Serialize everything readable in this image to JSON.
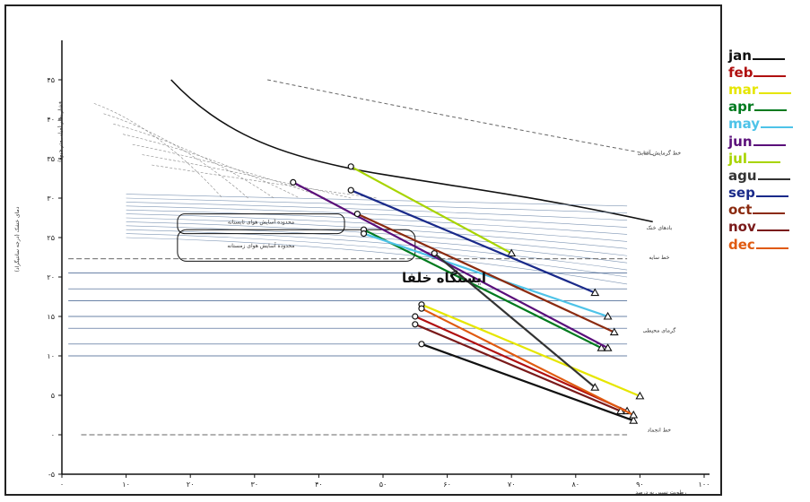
{
  "chart_data": {
    "type": "line",
    "title": "",
    "station_label": "ایستگاه خلفا",
    "x_ticks": [
      "۰",
      "۱۰",
      "۲۰",
      "۳۰",
      "۴۰",
      "۵۰",
      "۶۰",
      "۷۰",
      "۸۰",
      "۹۰",
      "۱۰۰"
    ],
    "y_ticks": [
      "۴۵",
      "۴۰",
      "۳۵",
      "۳۰",
      "۲۵",
      "۲۰",
      "۱۵",
      "۱۰",
      "۵",
      "۰",
      "-۵"
    ],
    "xlabel": "رطوبت نسبی به درصد",
    "ylabel": "دمای خشک (درجه سانتیگراد)",
    "ylabel_2": "فشار بخار (میلی متر جیوه)",
    "comfort_summer": "محدوده آسایش هوای تابستانه",
    "comfort_winter": "محدوده آسایش هوای زمستانه",
    "side_labels": [
      "خط گرمایش آفتابی",
      "بادهای خنک",
      "خط سایه",
      "گرمای محیطی",
      "خط انجماد"
    ],
    "xlim": [
      0,
      100
    ],
    "ylim": [
      -5,
      50
    ],
    "legend_position": "right",
    "series": [
      {
        "name": "jan",
        "color": "#111111",
        "points": [
          [
            56,
            11.5
          ],
          [
            89,
            1.8
          ]
        ]
      },
      {
        "name": "feb",
        "color": "#b01010",
        "points": [
          [
            55,
            15
          ],
          [
            88,
            3
          ]
        ]
      },
      {
        "name": "mar",
        "color": "#e6e600",
        "points": [
          [
            56,
            16.5
          ],
          [
            90,
            4.9
          ]
        ]
      },
      {
        "name": "apr",
        "color": "#007a1e",
        "points": [
          [
            47,
            26
          ],
          [
            84,
            11
          ]
        ]
      },
      {
        "name": "may",
        "color": "#4ec3e8",
        "points": [
          [
            47,
            25.5
          ],
          [
            85,
            15
          ]
        ]
      },
      {
        "name": "jun",
        "color": "#5a0f7a",
        "points": [
          [
            36,
            32
          ],
          [
            85,
            11
          ]
        ]
      },
      {
        "name": "jul",
        "color": "#a8d400",
        "points": [
          [
            45,
            34
          ],
          [
            70,
            23
          ]
        ]
      },
      {
        "name": "agu",
        "color": "#333333",
        "points": [
          [
            58,
            23
          ],
          [
            83,
            6
          ]
        ]
      },
      {
        "name": "sep",
        "color": "#1a2a8a",
        "points": [
          [
            45,
            31
          ],
          [
            83,
            18
          ]
        ]
      },
      {
        "name": "oct",
        "color": "#8b2b10",
        "points": [
          [
            46,
            28
          ],
          [
            86,
            13
          ]
        ]
      },
      {
        "name": "nov",
        "color": "#7a1a1a",
        "points": [
          [
            55,
            14
          ],
          [
            87,
            3
          ]
        ]
      },
      {
        "name": "dec",
        "color": "#e05a10",
        "points": [
          [
            56,
            16
          ],
          [
            89,
            2.5
          ]
        ]
      }
    ]
  },
  "legend": [
    {
      "label": "jan",
      "color": "#111111"
    },
    {
      "label": "feb",
      "color": "#b01010"
    },
    {
      "label": "mar",
      "color": "#e6e600"
    },
    {
      "label": "apr",
      "color": "#007a1e"
    },
    {
      "label": "may",
      "color": "#4ec3e8"
    },
    {
      "label": "jun",
      "color": "#5a0f7a"
    },
    {
      "label": "jul",
      "color": "#a8d400"
    },
    {
      "label": "agu",
      "color": "#333333"
    },
    {
      "label": "sep",
      "color": "#1a2a8a"
    },
    {
      "label": "oct",
      "color": "#8b2b10"
    },
    {
      "label": "nov",
      "color": "#7a1a1a"
    },
    {
      "label": "dec",
      "color": "#e05a10"
    }
  ]
}
